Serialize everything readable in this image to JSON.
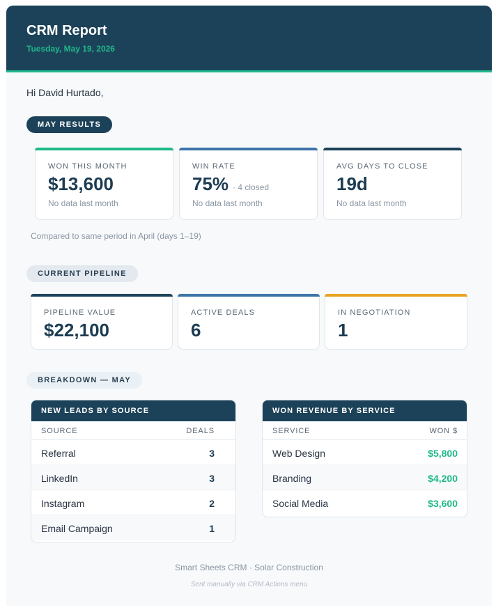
{
  "header": {
    "title": "CRM Report",
    "date": "Tuesday, May 19, 2026"
  },
  "greeting": "Hi David Hurtado,",
  "results": {
    "section_label": "MAY RESULTS",
    "cards": [
      {
        "label": "WON THIS MONTH",
        "value": "$13,600",
        "aside": "",
        "sub": "No data last month",
        "accent": "#1fb88a"
      },
      {
        "label": "WIN RATE",
        "value": "75%",
        "aside": "· 4 closed",
        "sub": "No data last month",
        "accent": "#3d74a8"
      },
      {
        "label": "AVG DAYS TO CLOSE",
        "value": "19d",
        "aside": "",
        "sub": "No data last month",
        "accent": "#1c4259"
      }
    ],
    "note": "Compared to same period in April (days 1–19)"
  },
  "pipeline": {
    "section_label": "CURRENT PIPELINE",
    "cards": [
      {
        "label": "PIPELINE VALUE",
        "value": "$22,100",
        "accent": "#1c4259"
      },
      {
        "label": "ACTIVE DEALS",
        "value": "6",
        "accent": "#3d74a8"
      },
      {
        "label": "IN NEGOTIATION",
        "value": "1",
        "accent": "#e8a321"
      }
    ]
  },
  "breakdown": {
    "section_label": "BREAKDOWN — MAY",
    "leads": {
      "title": "NEW LEADS BY SOURCE",
      "col1": "SOURCE",
      "col2": "DEALS",
      "rows": [
        {
          "name": "Referral",
          "value": "3"
        },
        {
          "name": "LinkedIn",
          "value": "3"
        },
        {
          "name": "Instagram",
          "value": "2"
        },
        {
          "name": "Email Campaign",
          "value": "1"
        }
      ]
    },
    "revenue": {
      "title": "WON REVENUE BY SERVICE",
      "col1": "SERVICE",
      "col2": "WON $",
      "rows": [
        {
          "name": "Web Design",
          "value": "$5,800"
        },
        {
          "name": "Branding",
          "value": "$4,200"
        },
        {
          "name": "Social Media",
          "value": "$3,600"
        }
      ]
    }
  },
  "footer": {
    "line1": "Smart Sheets CRM · Solar Construction",
    "line2": "Sent manually via CRM Actions menu"
  }
}
